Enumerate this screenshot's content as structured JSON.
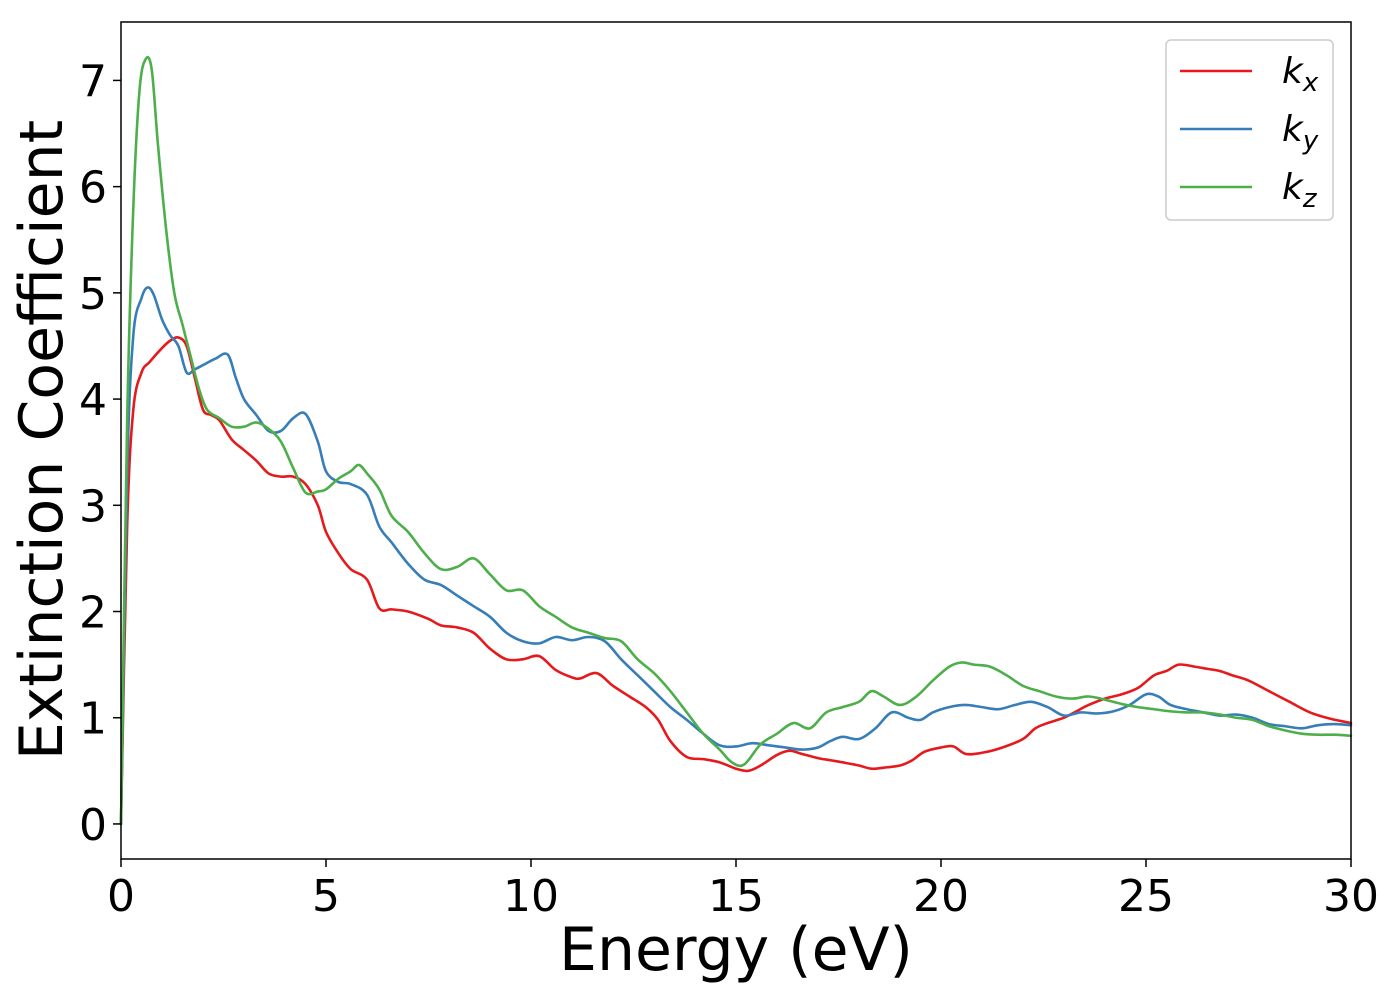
{
  "chart_data": {
    "type": "line",
    "title": "",
    "xlabel": "Energy (eV)",
    "ylabel": "Extinction Coefficient",
    "xlim": [
      0,
      30
    ],
    "ylim": [
      -0.33,
      7.55
    ],
    "xticks": [
      0,
      5,
      10,
      15,
      20,
      25,
      30
    ],
    "yticks": [
      0,
      1,
      2,
      3,
      4,
      5,
      6,
      7
    ],
    "grid": false,
    "legend_position": "top-right",
    "series": [
      {
        "name": "k",
        "subscript": "x",
        "color": "#e41a1c",
        "x": [
          0,
          0.15,
          0.3,
          0.5,
          0.7,
          1.0,
          1.2,
          1.4,
          1.6,
          1.8,
          2.0,
          2.2,
          2.4,
          2.7,
          3.0,
          3.3,
          3.6,
          3.9,
          4.2,
          4.5,
          4.8,
          5.0,
          5.3,
          5.6,
          6.0,
          6.3,
          6.6,
          7.0,
          7.5,
          7.8,
          8.2,
          8.6,
          9.0,
          9.4,
          9.8,
          10.2,
          10.6,
          11.0,
          11.2,
          11.6,
          12.0,
          12.4,
          12.8,
          13.1,
          13.4,
          13.8,
          14.2,
          14.6,
          15.0,
          15.3,
          15.6,
          16.0,
          16.3,
          16.6,
          17.0,
          17.3,
          17.6,
          18.0,
          18.3,
          18.6,
          19.0,
          19.3,
          19.6,
          20.0,
          20.3,
          20.6,
          21.0,
          21.5,
          22.0,
          22.3,
          22.6,
          23.0,
          23.3,
          23.6,
          24.0,
          24.4,
          24.8,
          25.2,
          25.5,
          25.8,
          26.2,
          26.5,
          26.8,
          27.1,
          27.5,
          28.0,
          28.5,
          29.0,
          29.5,
          30.0
        ],
        "values": [
          0,
          2.8,
          3.9,
          4.25,
          4.35,
          4.48,
          4.55,
          4.58,
          4.5,
          4.2,
          3.9,
          3.85,
          3.8,
          3.62,
          3.52,
          3.42,
          3.3,
          3.27,
          3.27,
          3.2,
          3.0,
          2.75,
          2.55,
          2.4,
          2.3,
          2.03,
          2.02,
          2.0,
          1.93,
          1.87,
          1.85,
          1.8,
          1.65,
          1.55,
          1.55,
          1.58,
          1.45,
          1.38,
          1.37,
          1.42,
          1.3,
          1.2,
          1.1,
          0.98,
          0.78,
          0.63,
          0.61,
          0.58,
          0.52,
          0.5,
          0.55,
          0.65,
          0.69,
          0.66,
          0.62,
          0.6,
          0.58,
          0.55,
          0.52,
          0.53,
          0.55,
          0.6,
          0.68,
          0.72,
          0.73,
          0.66,
          0.67,
          0.72,
          0.8,
          0.9,
          0.95,
          1.0,
          1.06,
          1.12,
          1.18,
          1.22,
          1.28,
          1.4,
          1.44,
          1.5,
          1.48,
          1.46,
          1.44,
          1.4,
          1.35,
          1.25,
          1.15,
          1.05,
          0.99,
          0.95
        ]
      },
      {
        "name": "k",
        "subscript": "y",
        "color": "#377eb8",
        "x": [
          0,
          0.15,
          0.3,
          0.5,
          0.65,
          0.8,
          1.0,
          1.2,
          1.4,
          1.6,
          1.8,
          2.0,
          2.3,
          2.6,
          2.8,
          3.0,
          3.3,
          3.6,
          3.9,
          4.2,
          4.5,
          4.8,
          5.0,
          5.3,
          5.6,
          6.0,
          6.3,
          6.6,
          7.0,
          7.4,
          7.8,
          8.2,
          8.6,
          9.0,
          9.4,
          9.8,
          10.2,
          10.6,
          11.0,
          11.4,
          11.8,
          12.2,
          12.6,
          13.0,
          13.4,
          13.8,
          14.2,
          14.6,
          15.0,
          15.4,
          15.8,
          16.2,
          16.6,
          17.0,
          17.3,
          17.6,
          18.0,
          18.4,
          18.8,
          19.2,
          19.5,
          19.8,
          20.2,
          20.6,
          21.0,
          21.4,
          21.8,
          22.2,
          22.6,
          23.0,
          23.4,
          23.8,
          24.2,
          24.6,
          25.0,
          25.3,
          25.6,
          26.0,
          26.4,
          26.8,
          27.2,
          27.6,
          28.0,
          28.4,
          28.8,
          29.2,
          29.6,
          30.0
        ],
        "values": [
          0,
          3.3,
          4.6,
          4.95,
          5.05,
          4.98,
          4.75,
          4.6,
          4.5,
          4.25,
          4.28,
          4.32,
          4.38,
          4.42,
          4.2,
          4.0,
          3.85,
          3.7,
          3.7,
          3.82,
          3.86,
          3.6,
          3.32,
          3.22,
          3.2,
          3.1,
          2.8,
          2.65,
          2.45,
          2.3,
          2.25,
          2.15,
          2.05,
          1.95,
          1.8,
          1.72,
          1.7,
          1.76,
          1.73,
          1.76,
          1.72,
          1.55,
          1.4,
          1.25,
          1.1,
          0.98,
          0.85,
          0.74,
          0.73,
          0.76,
          0.74,
          0.72,
          0.7,
          0.72,
          0.78,
          0.82,
          0.8,
          0.9,
          1.05,
          1.0,
          0.98,
          1.05,
          1.1,
          1.12,
          1.1,
          1.08,
          1.12,
          1.15,
          1.1,
          1.02,
          1.05,
          1.04,
          1.06,
          1.12,
          1.22,
          1.2,
          1.12,
          1.08,
          1.05,
          1.02,
          1.03,
          1.0,
          0.94,
          0.92,
          0.9,
          0.93,
          0.94,
          0.93
        ]
      },
      {
        "name": "k",
        "subscript": "z",
        "color": "#4daf4a",
        "x": [
          0,
          0.15,
          0.3,
          0.45,
          0.6,
          0.75,
          0.9,
          1.1,
          1.3,
          1.5,
          1.7,
          1.9,
          2.1,
          2.4,
          2.7,
          3.0,
          3.3,
          3.6,
          3.9,
          4.2,
          4.5,
          4.8,
          5.0,
          5.3,
          5.6,
          5.8,
          6.0,
          6.3,
          6.6,
          7.0,
          7.4,
          7.8,
          8.2,
          8.6,
          9.0,
          9.4,
          9.8,
          10.2,
          10.6,
          11.0,
          11.4,
          11.8,
          12.2,
          12.6,
          13.0,
          13.4,
          13.8,
          14.2,
          14.6,
          14.9,
          15.2,
          15.6,
          16.0,
          16.4,
          16.8,
          17.2,
          17.6,
          18.0,
          18.3,
          18.6,
          19.0,
          19.4,
          19.8,
          20.2,
          20.5,
          20.8,
          21.2,
          21.6,
          22.0,
          22.4,
          22.8,
          23.2,
          23.6,
          24.0,
          24.4,
          24.8,
          25.2,
          25.6,
          26.0,
          26.4,
          26.8,
          27.2,
          27.6,
          28.0,
          28.4,
          28.8,
          29.2,
          29.6,
          30.0
        ],
        "values": [
          0,
          3.8,
          5.8,
          6.9,
          7.2,
          7.1,
          6.4,
          5.6,
          5.0,
          4.7,
          4.4,
          4.1,
          3.9,
          3.82,
          3.74,
          3.74,
          3.78,
          3.72,
          3.6,
          3.35,
          3.12,
          3.13,
          3.15,
          3.25,
          3.32,
          3.38,
          3.3,
          3.15,
          2.9,
          2.75,
          2.55,
          2.4,
          2.42,
          2.5,
          2.35,
          2.2,
          2.2,
          2.05,
          1.95,
          1.85,
          1.8,
          1.75,
          1.72,
          1.55,
          1.42,
          1.25,
          1.05,
          0.85,
          0.7,
          0.58,
          0.56,
          0.75,
          0.85,
          0.95,
          0.9,
          1.05,
          1.1,
          1.15,
          1.25,
          1.2,
          1.12,
          1.2,
          1.35,
          1.48,
          1.52,
          1.5,
          1.48,
          1.4,
          1.3,
          1.25,
          1.2,
          1.18,
          1.2,
          1.17,
          1.13,
          1.1,
          1.08,
          1.06,
          1.05,
          1.05,
          1.03,
          1.0,
          0.98,
          0.92,
          0.88,
          0.85,
          0.84,
          0.84,
          0.83
        ]
      }
    ]
  }
}
